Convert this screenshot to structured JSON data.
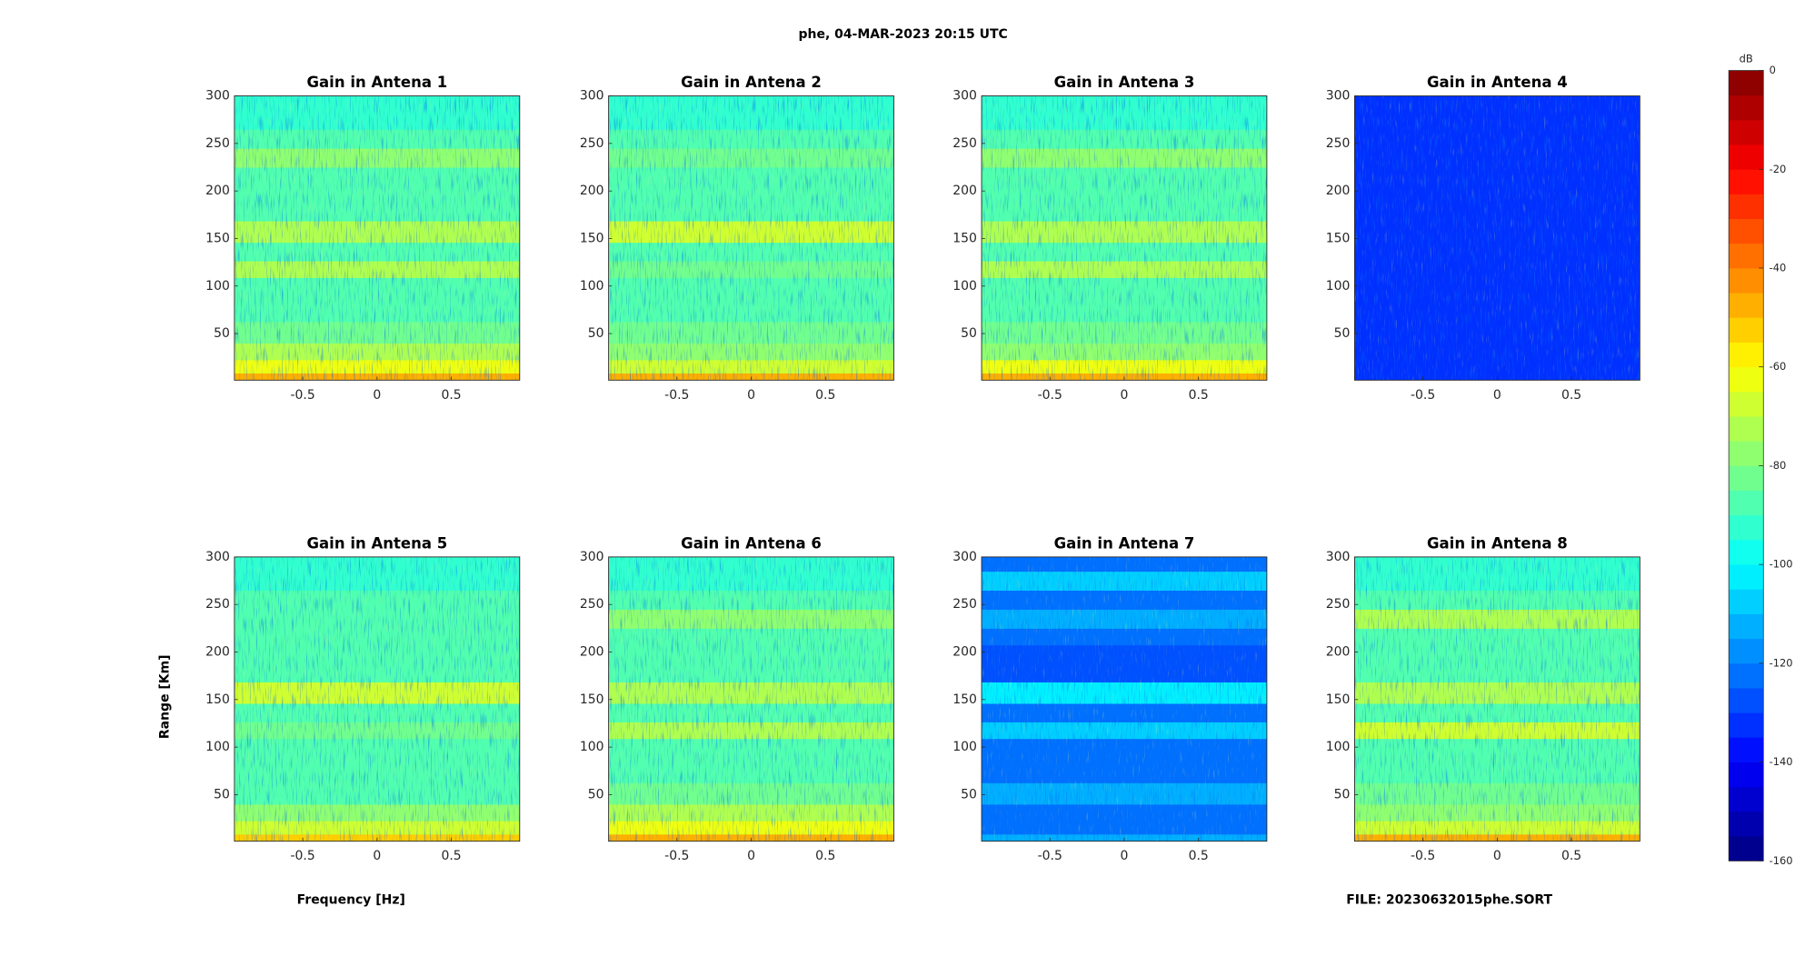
{
  "title": "phe, 04-MAR-2023 20:15 UTC",
  "x_label": "Frequency [Hz]",
  "y_label": "Range [Km]",
  "file_label": "FILE: 20230632015phe.SORT",
  "colorbar": {
    "label": "dB",
    "lim": [
      -160,
      0
    ],
    "ticks": [
      0,
      -20,
      -40,
      -60,
      -80,
      -100,
      -120,
      -140,
      -160
    ]
  },
  "chart_data": [
    {
      "type": "heatmap",
      "title": "Gain in Antena 1",
      "xlim": [
        -0.96,
        0.96
      ],
      "xticks": [
        -0.5,
        0,
        0.5
      ],
      "ylim": [
        1,
        300
      ],
      "yticks": [
        50,
        100,
        150,
        200,
        250,
        300
      ],
      "y": [
        2,
        15,
        30,
        50,
        75,
        100,
        118,
        135,
        157,
        180,
        200,
        215,
        235,
        255,
        275,
        295
      ],
      "values": [
        -48,
        -65,
        -75,
        -85,
        -88,
        -88,
        -72,
        -88,
        -75,
        -90,
        -90,
        -90,
        -78,
        -90,
        -92,
        -92
      ]
    },
    {
      "type": "heatmap",
      "title": "Gain in Antena 2",
      "xlim": [
        -0.96,
        0.96
      ],
      "xticks": [
        -0.5,
        0,
        0.5
      ],
      "ylim": [
        1,
        300
      ],
      "yticks": [
        50,
        100,
        150,
        200,
        250,
        300
      ],
      "y": [
        2,
        15,
        30,
        50,
        75,
        100,
        118,
        135,
        157,
        180,
        200,
        215,
        235,
        255,
        275,
        295
      ],
      "values": [
        -50,
        -68,
        -78,
        -85,
        -88,
        -90,
        -82,
        -88,
        -70,
        -90,
        -90,
        -90,
        -85,
        -90,
        -92,
        -92
      ]
    },
    {
      "type": "heatmap",
      "title": "Gain in Antena 3",
      "xlim": [
        -0.96,
        0.96
      ],
      "xticks": [
        -0.5,
        0,
        0.5
      ],
      "ylim": [
        1,
        300
      ],
      "yticks": [
        50,
        100,
        150,
        200,
        250,
        300
      ],
      "y": [
        2,
        15,
        30,
        50,
        75,
        100,
        118,
        135,
        157,
        180,
        200,
        215,
        235,
        255,
        275,
        295
      ],
      "values": [
        -48,
        -65,
        -76,
        -85,
        -88,
        -88,
        -74,
        -88,
        -72,
        -90,
        -90,
        -90,
        -80,
        -90,
        -92,
        -92
      ]
    },
    {
      "type": "heatmap",
      "title": "Gain in Antena 4",
      "xlim": [
        -0.96,
        0.96
      ],
      "xticks": [
        -0.5,
        0,
        0.5
      ],
      "ylim": [
        1,
        300
      ],
      "yticks": [
        50,
        100,
        150,
        200,
        250,
        300
      ],
      "y": [
        2,
        15,
        30,
        50,
        75,
        100,
        118,
        135,
        157,
        180,
        200,
        215,
        235,
        255,
        275,
        295
      ],
      "values": [
        -135,
        -135,
        -135,
        -135,
        -135,
        -135,
        -134,
        -135,
        -132,
        -135,
        -135,
        -135,
        -135,
        -135,
        -135,
        -135
      ]
    },
    {
      "type": "heatmap",
      "title": "Gain in Antena 5",
      "xlim": [
        -0.96,
        0.96
      ],
      "xticks": [
        -0.5,
        0,
        0.5
      ],
      "ylim": [
        1,
        300
      ],
      "yticks": [
        50,
        100,
        150,
        200,
        250,
        300
      ],
      "y": [
        2,
        15,
        30,
        50,
        75,
        100,
        118,
        135,
        157,
        180,
        200,
        215,
        235,
        255,
        275,
        295
      ],
      "values": [
        -55,
        -70,
        -78,
        -86,
        -88,
        -88,
        -85,
        -88,
        -70,
        -90,
        -90,
        -90,
        -88,
        -90,
        -92,
        -92
      ]
    },
    {
      "type": "heatmap",
      "title": "Gain in Antena 6",
      "xlim": [
        -0.96,
        0.96
      ],
      "xticks": [
        -0.5,
        0,
        0.5
      ],
      "ylim": [
        1,
        300
      ],
      "yticks": [
        50,
        100,
        150,
        200,
        250,
        300
      ],
      "y": [
        2,
        15,
        30,
        50,
        75,
        100,
        118,
        135,
        157,
        180,
        200,
        215,
        235,
        255,
        275,
        295
      ],
      "values": [
        -50,
        -65,
        -74,
        -82,
        -86,
        -87,
        -75,
        -86,
        -72,
        -90,
        -90,
        -90,
        -80,
        -90,
        -92,
        -92
      ]
    },
    {
      "type": "heatmap",
      "title": "Gain in Antena 7",
      "xlim": [
        -0.96,
        0.96
      ],
      "xticks": [
        -0.5,
        0,
        0.5
      ],
      "ylim": [
        1,
        300
      ],
      "yticks": [
        50,
        100,
        150,
        200,
        250,
        300
      ],
      "y": [
        2,
        15,
        30,
        50,
        75,
        100,
        118,
        135,
        157,
        180,
        200,
        215,
        235,
        255,
        275,
        295
      ],
      "values": [
        -115,
        -125,
        -122,
        -112,
        -125,
        -125,
        -110,
        -125,
        -105,
        -127,
        -127,
        -125,
        -115,
        -125,
        -108,
        -125
      ]
    },
    {
      "type": "heatmap",
      "title": "Gain in Antena 8",
      "xlim": [
        -0.96,
        0.96
      ],
      "xticks": [
        -0.5,
        0,
        0.5
      ],
      "ylim": [
        1,
        300
      ],
      "yticks": [
        50,
        100,
        150,
        200,
        250,
        300
      ],
      "y": [
        2,
        15,
        30,
        50,
        75,
        100,
        118,
        135,
        157,
        180,
        200,
        215,
        235,
        255,
        275,
        295
      ],
      "values": [
        -50,
        -66,
        -76,
        -85,
        -88,
        -88,
        -70,
        -88,
        -74,
        -90,
        -90,
        -90,
        -75,
        -90,
        -92,
        -92
      ]
    }
  ]
}
